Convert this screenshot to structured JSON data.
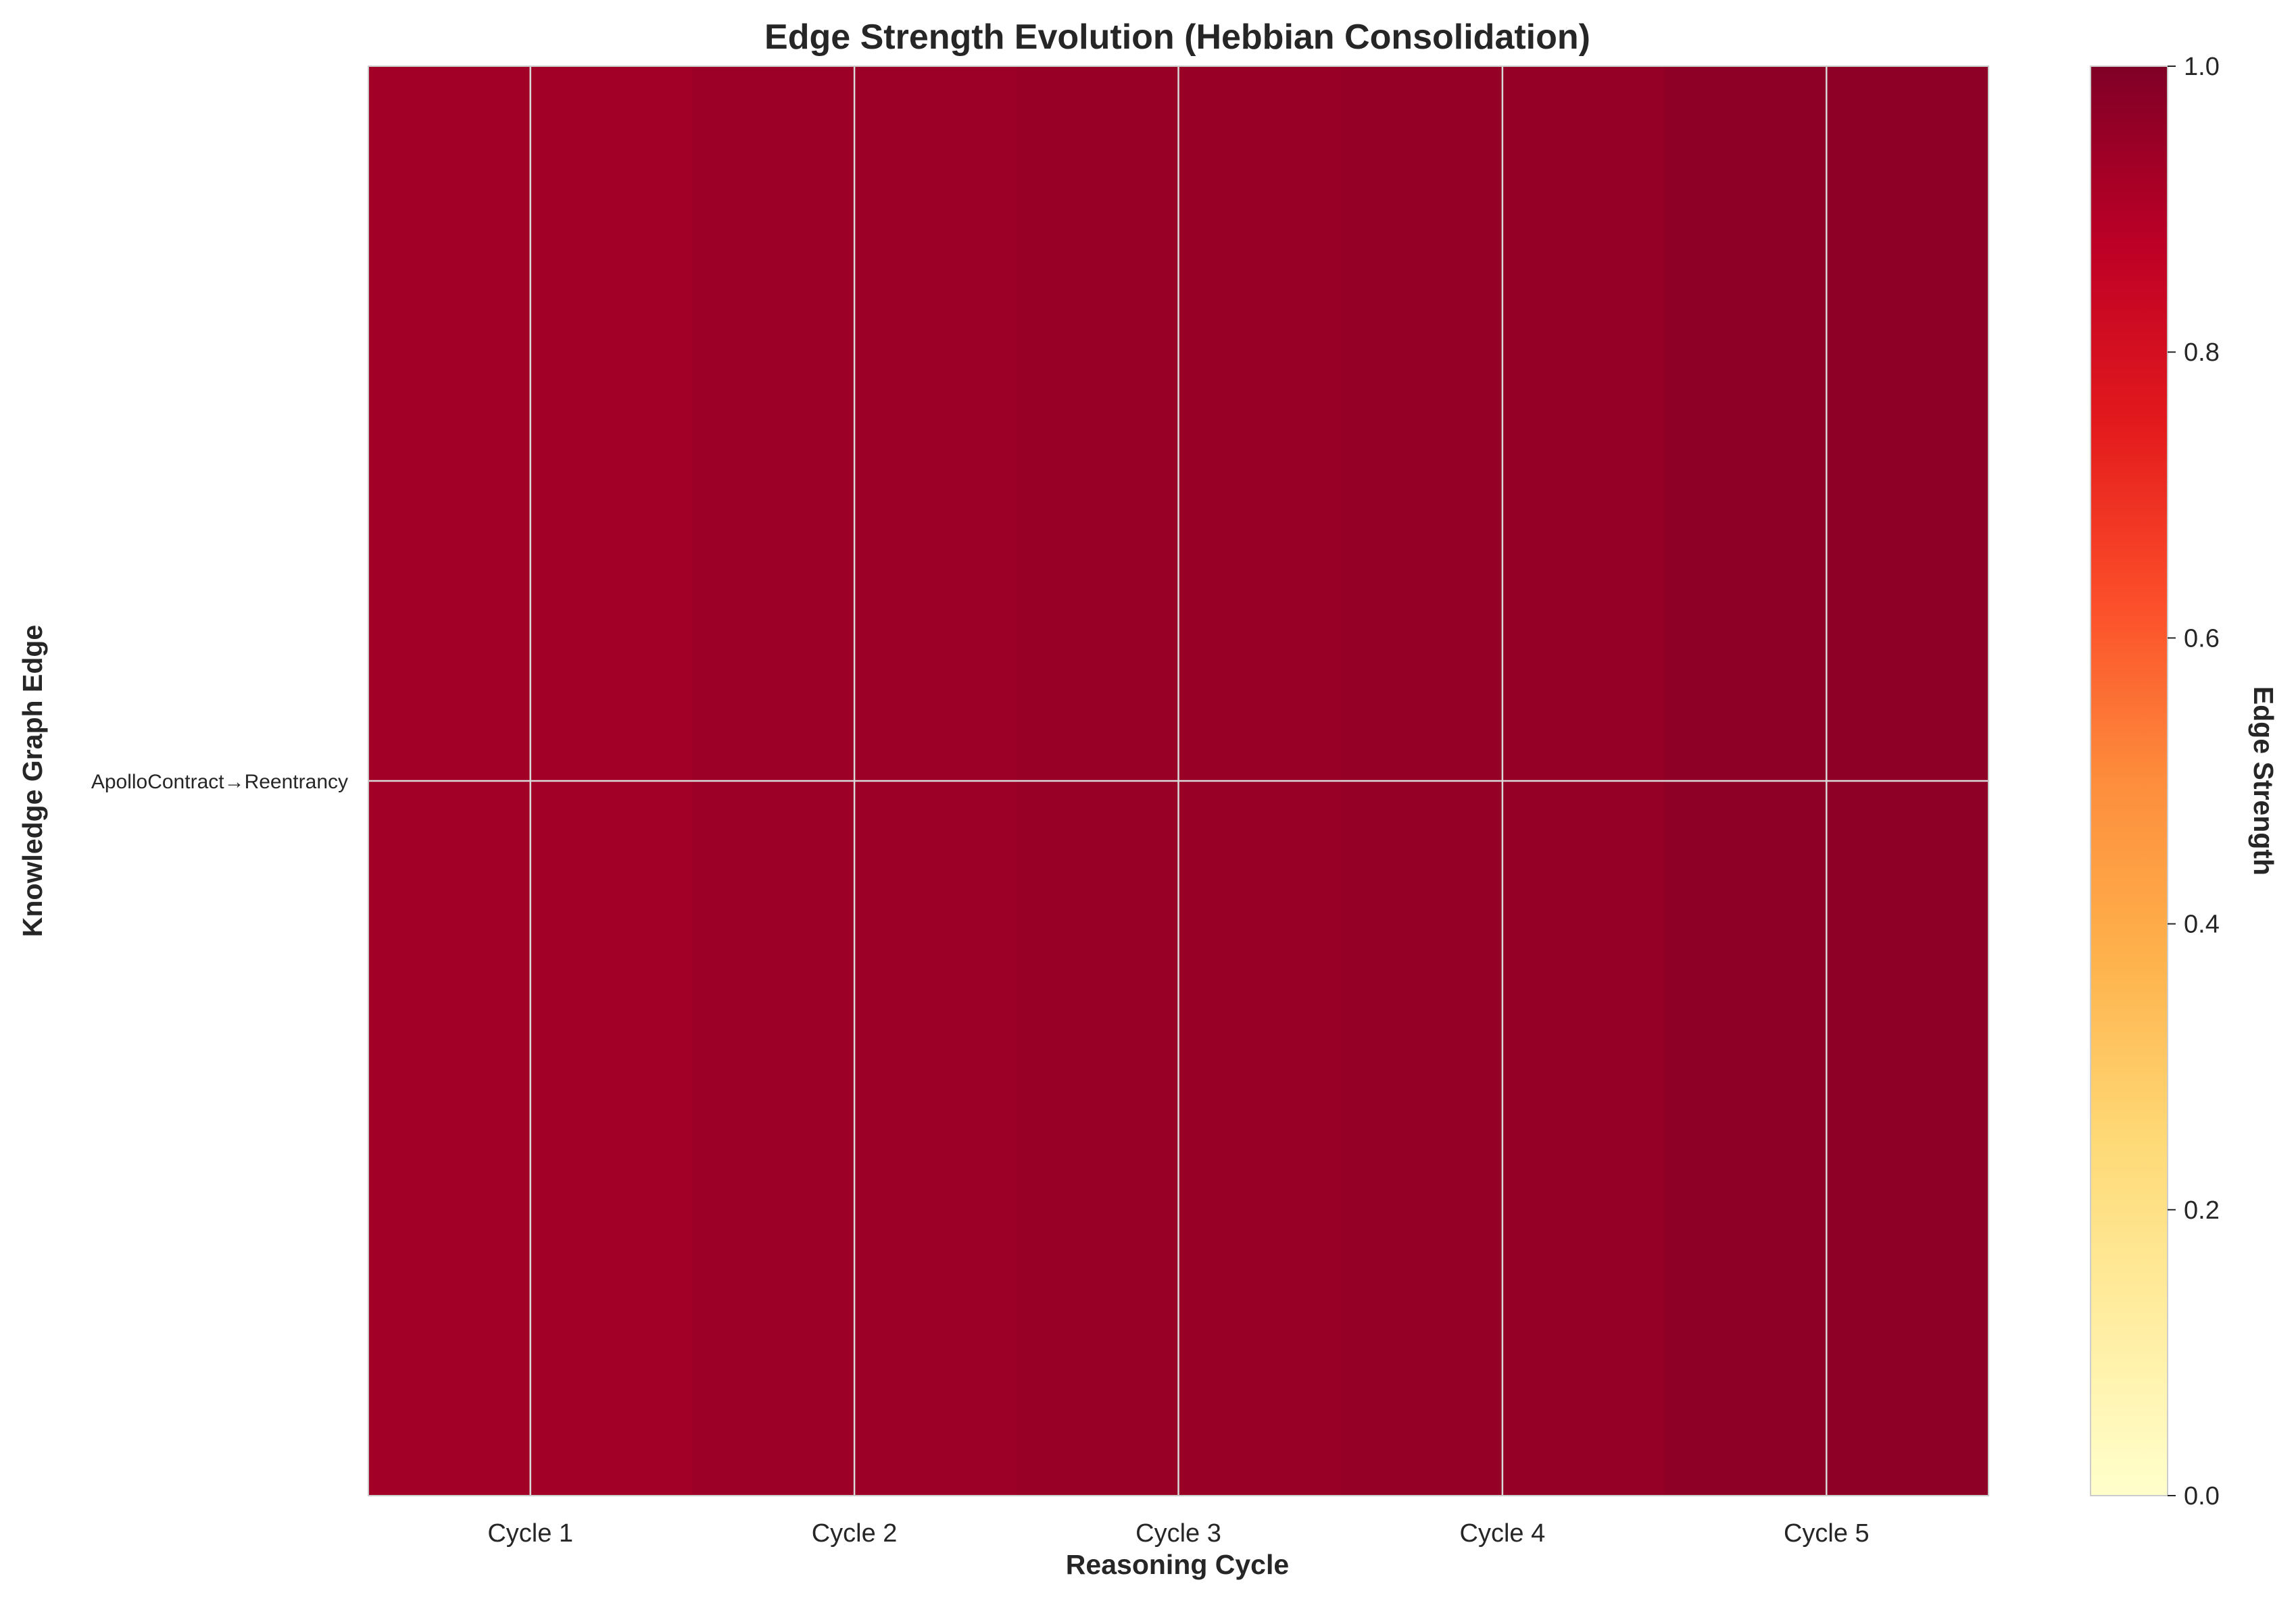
{
  "chart_data": {
    "type": "heatmap",
    "title": "Edge Strength Evolution (Hebbian Consolidation)",
    "xlabel": "Reasoning Cycle",
    "ylabel": "Knowledge Graph Edge",
    "x_tick_labels": [
      "Cycle 1",
      "Cycle 2",
      "Cycle 3",
      "Cycle 4",
      "Cycle 5"
    ],
    "y_tick_labels": [
      "ApolloContract→Reentrancy"
    ],
    "columns": 10,
    "values": [
      [
        0.93,
        0.93,
        0.94,
        0.94,
        0.95,
        0.95,
        0.96,
        0.96,
        0.97,
        0.97
      ]
    ],
    "colormap": "YlOrRd",
    "colormap_stops": [
      "#ffffcc",
      "#ffeda0",
      "#fed976",
      "#feb24c",
      "#fd8d3c",
      "#fc4e2a",
      "#e31a1c",
      "#bd0026",
      "#800026"
    ],
    "vmin": 0,
    "vmax": 1,
    "grid": true,
    "colorbar": {
      "label": "Edge Strength",
      "ticks": [
        "0.0",
        "0.2",
        "0.4",
        "0.6",
        "0.8",
        "1.0"
      ],
      "tick_values": [
        0,
        0.2,
        0.4,
        0.6,
        0.8,
        1.0
      ],
      "placement": "right"
    }
  }
}
